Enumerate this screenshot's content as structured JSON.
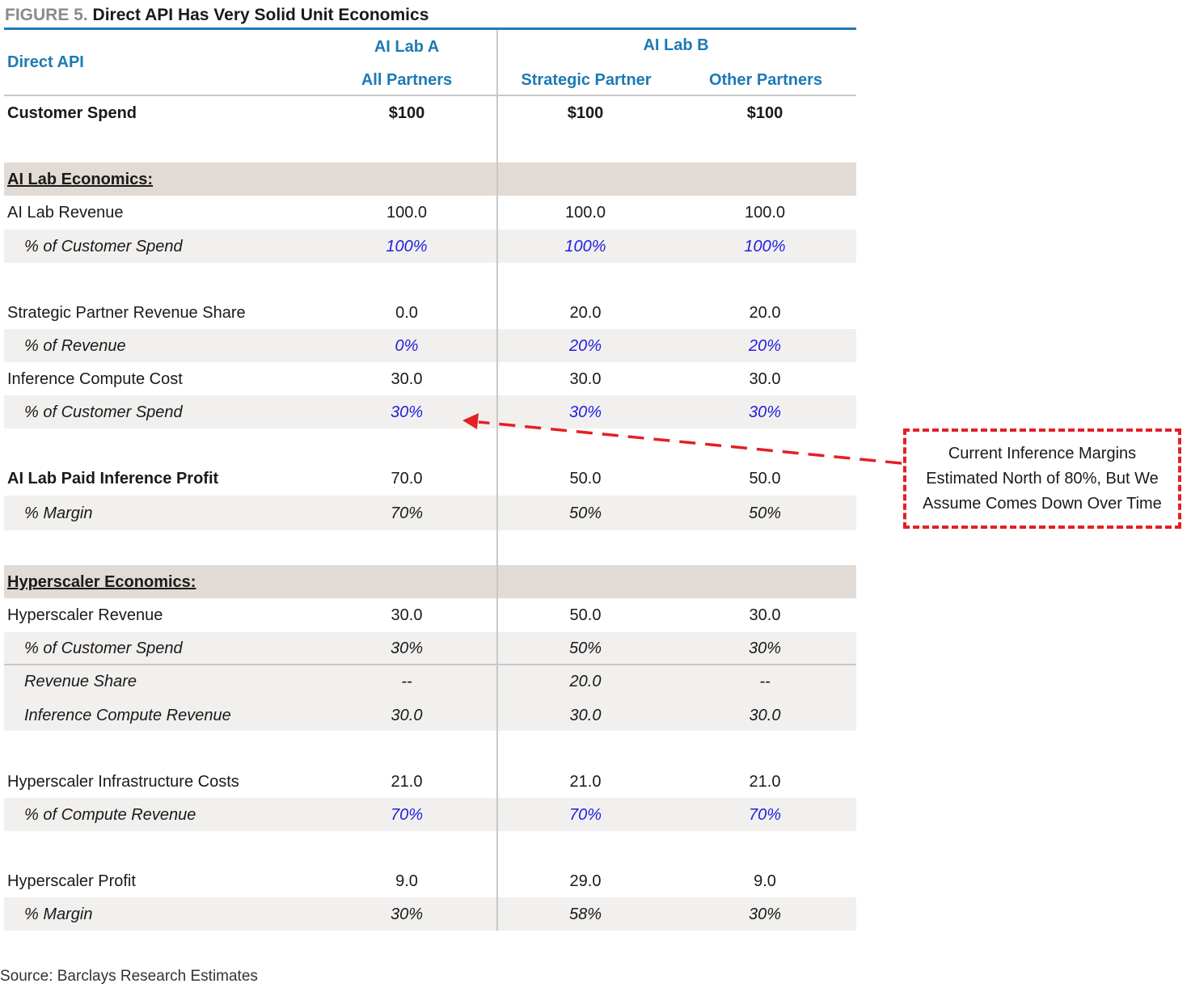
{
  "figure": {
    "label": "FIGURE 5.",
    "title": "Direct API Has Very Solid Unit Economics"
  },
  "header": {
    "row_label": "Direct API",
    "lab_a": "AI Lab A",
    "lab_b": "AI Lab B",
    "col1": "All Partners",
    "col2": "Strategic Partner",
    "col3": "Other Partners"
  },
  "customer_spend": {
    "label": "Customer Spend",
    "values": [
      "$100",
      "$100",
      "$100"
    ]
  },
  "sections": {
    "ai_lab": "AI Lab Economics:",
    "hyperscaler": "Hyperscaler Economics:"
  },
  "rows": {
    "ai_lab_revenue": {
      "label": "AI Lab Revenue",
      "values": [
        "100.0",
        "100.0",
        "100.0"
      ]
    },
    "ai_lab_revenue_pct": {
      "label": "% of Customer Spend",
      "values": [
        "100%",
        "100%",
        "100%"
      ]
    },
    "partner_rev_share": {
      "label": "Strategic Partner Revenue Share",
      "values": [
        "0.0",
        "20.0",
        "20.0"
      ]
    },
    "partner_rev_share_pct": {
      "label": "% of Revenue",
      "values": [
        "0%",
        "20%",
        "20%"
      ]
    },
    "inference_cost": {
      "label": "Inference Compute Cost",
      "values": [
        "30.0",
        "30.0",
        "30.0"
      ]
    },
    "inference_cost_pct": {
      "label": "% of Customer Spend",
      "values": [
        "30%",
        "30%",
        "30%"
      ]
    },
    "inference_profit": {
      "label": "AI Lab Paid Inference Profit",
      "values": [
        "70.0",
        "50.0",
        "50.0"
      ]
    },
    "inference_profit_margin": {
      "label": "% Margin",
      "values": [
        "70%",
        "50%",
        "50%"
      ]
    },
    "hyperscaler_revenue": {
      "label": "Hyperscaler Revenue",
      "values": [
        "30.0",
        "50.0",
        "30.0"
      ]
    },
    "hyperscaler_revenue_pct": {
      "label": "% of Customer Spend",
      "values": [
        "30%",
        "50%",
        "30%"
      ]
    },
    "revenue_share": {
      "label": "Revenue Share",
      "values": [
        "--",
        "20.0",
        "--"
      ]
    },
    "inference_compute_revenue": {
      "label": "Inference Compute Revenue",
      "values": [
        "30.0",
        "30.0",
        "30.0"
      ]
    },
    "infra_costs": {
      "label": "Hyperscaler Infrastructure Costs",
      "values": [
        "21.0",
        "21.0",
        "21.0"
      ]
    },
    "infra_costs_pct": {
      "label": "% of Compute Revenue",
      "values": [
        "70%",
        "70%",
        "70%"
      ]
    },
    "hyperscaler_profit": {
      "label": "Hyperscaler Profit",
      "values": [
        "9.0",
        "29.0",
        "9.0"
      ]
    },
    "hyperscaler_profit_margin": {
      "label": "% Margin",
      "values": [
        "30%",
        "58%",
        "30%"
      ]
    }
  },
  "callout": {
    "lines": [
      "Current Inference Margins",
      "Estimated North of 80%, But We",
      "Assume Comes Down Over Time"
    ],
    "border_color": "#e41f26"
  },
  "source": "Source: Barclays Research Estimates",
  "colors": {
    "accent_blue": "#1d7ab5",
    "input_blue": "#1f1fe0",
    "section_band": "#e2dbd5",
    "alt_band": "#f2f0ee"
  }
}
